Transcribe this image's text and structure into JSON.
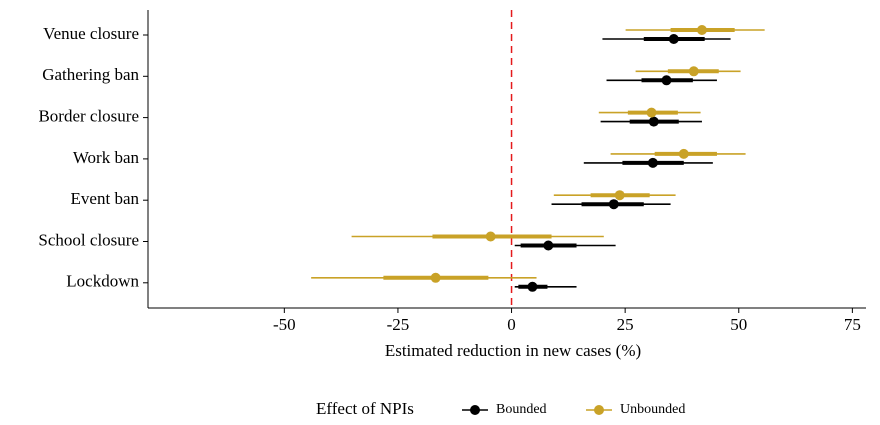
{
  "chart_data": {
    "type": "forest",
    "x_label": "Estimated reduction in new cases (%)",
    "categories": [
      "Venue closure",
      "Gathering ban",
      "Border closure",
      "Work ban",
      "Event ban",
      "School closure",
      "Lockdown"
    ],
    "series": [
      {
        "name": "Bounded",
        "color": "#000000",
        "values": [
          35.7,
          34.1,
          31.3,
          31.1,
          22.5,
          8.1,
          4.6
        ],
        "low_outer": [
          20.0,
          20.9,
          19.6,
          15.9,
          8.8,
          0.7,
          0.7
        ],
        "high_outer": [
          48.2,
          45.2,
          41.9,
          44.3,
          35.0,
          22.9,
          14.3
        ],
        "low_inner": [
          29.1,
          28.6,
          26.0,
          24.4,
          15.4,
          2.0,
          1.5
        ],
        "high_inner": [
          42.5,
          39.9,
          36.8,
          37.9,
          29.1,
          14.3,
          7.9
        ]
      },
      {
        "name": "Unbounded",
        "color": "#c9a227",
        "values": [
          41.9,
          40.1,
          30.8,
          37.9,
          23.8,
          -4.6,
          -16.7
        ],
        "low_outer": [
          25.1,
          27.3,
          19.2,
          21.8,
          9.3,
          -35.2,
          -44.1
        ],
        "high_outer": [
          55.7,
          50.4,
          41.6,
          51.5,
          36.1,
          20.3,
          5.5
        ],
        "low_inner": [
          35.0,
          34.4,
          25.6,
          31.5,
          17.4,
          -17.4,
          -28.2
        ],
        "high_inner": [
          49.1,
          45.6,
          36.6,
          45.2,
          30.4,
          8.8,
          -5.1
        ]
      }
    ],
    "xlim": [
      -80,
      78
    ],
    "xticks": [
      -50,
      -25,
      0,
      25,
      50,
      75
    ],
    "ref_line": 0,
    "ref_color": "#e41a1c",
    "legend_title": "Effect of NPIs",
    "legend_position": "bottom"
  }
}
